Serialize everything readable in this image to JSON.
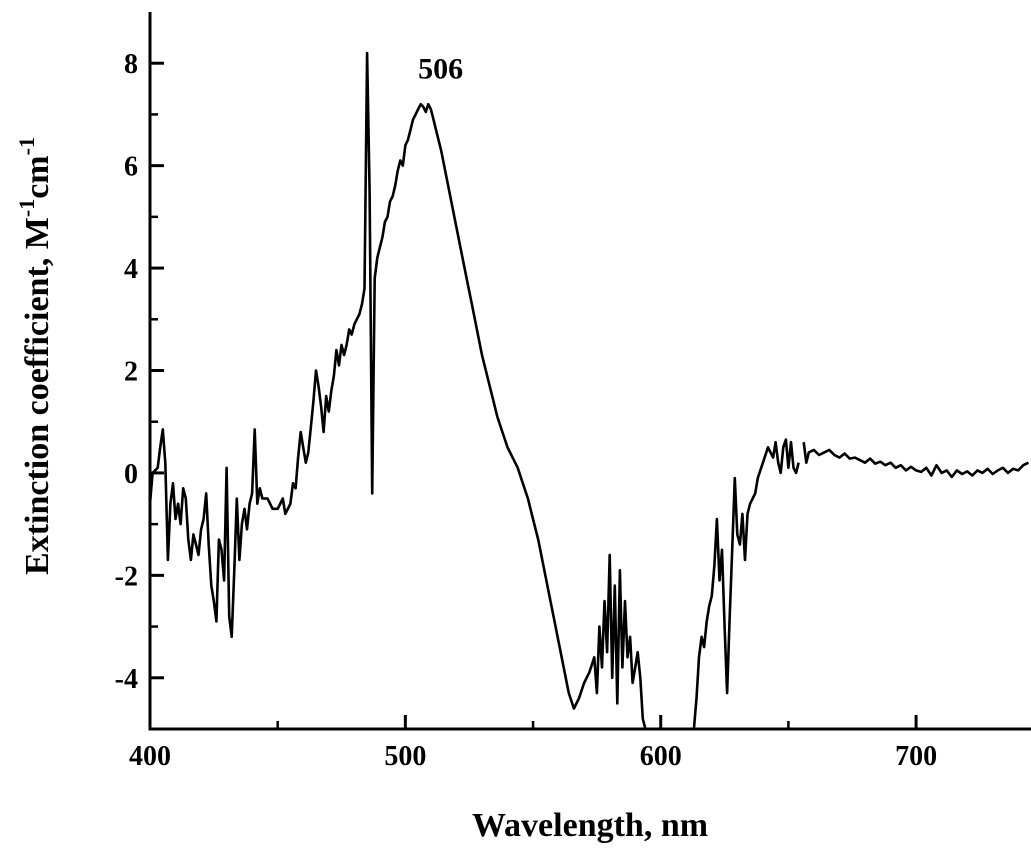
{
  "chart_data": {
    "type": "line",
    "xlabel": "Wavelength, nm",
    "ylabel": "Extinction coefficient, M",
    "ylabel_sup1": "-1",
    "ylabel_mid": "cm",
    "ylabel_sup2": "-1",
    "xlim": [
      400,
      745
    ],
    "ylim": [
      -5,
      9
    ],
    "x_ticks": [
      400,
      500,
      600,
      700
    ],
    "x_tick_labels": [
      "400",
      "500",
      "600",
      "700"
    ],
    "x_minor_ticks": [
      450,
      550,
      650
    ],
    "y_ticks": [
      -4,
      -2,
      0,
      2,
      4,
      6,
      8
    ],
    "y_tick_labels": [
      "-4",
      "-2",
      "0",
      "2",
      "4",
      "6",
      "8"
    ],
    "y_minor_ticks": [
      -3,
      -1,
      1,
      3,
      5,
      7
    ],
    "grid": false,
    "annotations": [
      {
        "text": "506",
        "x": 506,
        "y": 7.9
      }
    ],
    "series": [
      {
        "segments": [
          [
            [
              400,
              -0.6
            ],
            [
              401,
              0.0
            ],
            [
              403,
              0.1
            ],
            [
              404,
              0.5
            ],
            [
              405,
              0.85
            ],
            [
              406,
              0.2
            ],
            [
              407,
              -1.7
            ],
            [
              408,
              -0.6
            ],
            [
              409,
              -0.2
            ],
            [
              410,
              -0.9
            ],
            [
              411,
              -0.6
            ],
            [
              412,
              -1.0
            ],
            [
              413,
              -0.3
            ],
            [
              414,
              -0.5
            ],
            [
              415,
              -1.3
            ],
            [
              416,
              -1.7
            ],
            [
              417,
              -1.2
            ],
            [
              418,
              -1.4
            ],
            [
              419,
              -1.6
            ],
            [
              420,
              -1.1
            ],
            [
              421,
              -0.9
            ],
            [
              422,
              -0.4
            ],
            [
              423,
              -1.4
            ],
            [
              424,
              -2.2
            ],
            [
              425,
              -2.5
            ],
            [
              426,
              -2.9
            ],
            [
              427,
              -1.3
            ],
            [
              428,
              -1.5
            ],
            [
              429,
              -2.1
            ],
            [
              430,
              0.1
            ],
            [
              431,
              -2.8
            ],
            [
              432,
              -3.2
            ],
            [
              433,
              -1.9
            ],
            [
              434,
              -0.5
            ],
            [
              435,
              -1.7
            ],
            [
              436,
              -1.0
            ],
            [
              437,
              -0.7
            ],
            [
              438,
              -1.1
            ],
            [
              439,
              -0.6
            ],
            [
              440,
              -0.4
            ],
            [
              441,
              0.85
            ],
            [
              442,
              -0.6
            ],
            [
              443,
              -0.3
            ],
            [
              444,
              -0.5
            ],
            [
              446,
              -0.5
            ],
            [
              448,
              -0.7
            ],
            [
              450,
              -0.7
            ],
            [
              452,
              -0.5
            ],
            [
              453,
              -0.8
            ],
            [
              455,
              -0.6
            ],
            [
              456,
              -0.2
            ],
            [
              457,
              -0.3
            ],
            [
              458,
              0.3
            ],
            [
              459,
              0.8
            ],
            [
              460,
              0.5
            ],
            [
              461,
              0.2
            ],
            [
              462,
              0.4
            ],
            [
              463,
              0.9
            ],
            [
              464,
              1.4
            ],
            [
              465,
              2.0
            ],
            [
              466,
              1.7
            ],
            [
              467,
              1.3
            ],
            [
              468,
              0.8
            ],
            [
              469,
              1.5
            ],
            [
              470,
              1.2
            ],
            [
              471,
              1.6
            ],
            [
              472,
              1.9
            ],
            [
              473,
              2.4
            ],
            [
              474,
              2.1
            ],
            [
              475,
              2.5
            ],
            [
              476,
              2.3
            ],
            [
              477,
              2.5
            ],
            [
              478,
              2.8
            ],
            [
              479,
              2.7
            ],
            [
              480,
              2.9
            ],
            [
              481,
              3.0
            ],
            [
              482,
              3.1
            ],
            [
              483,
              3.3
            ],
            [
              484,
              3.6
            ],
            [
              485,
              8.2
            ],
            [
              486,
              5.5
            ],
            [
              487,
              -0.4
            ],
            [
              488,
              3.8
            ],
            [
              489,
              4.2
            ],
            [
              490,
              4.4
            ],
            [
              491,
              4.6
            ],
            [
              492,
              4.9
            ],
            [
              493,
              5.0
            ],
            [
              494,
              5.3
            ],
            [
              495,
              5.4
            ],
            [
              496,
              5.6
            ],
            [
              497,
              5.9
            ],
            [
              498,
              6.1
            ],
            [
              499,
              6.0
            ],
            [
              500,
              6.4
            ],
            [
              501,
              6.5
            ],
            [
              502,
              6.7
            ],
            [
              503,
              6.9
            ],
            [
              504,
              7.0
            ],
            [
              505,
              7.1
            ],
            [
              506,
              7.2
            ],
            [
              507,
              7.15
            ],
            [
              508,
              7.05
            ],
            [
              509,
              7.2
            ],
            [
              510,
              7.1
            ],
            [
              511,
              6.9
            ],
            [
              512,
              6.7
            ],
            [
              514,
              6.3
            ],
            [
              516,
              5.8
            ],
            [
              518,
              5.3
            ],
            [
              520,
              4.8
            ],
            [
              522,
              4.3
            ],
            [
              524,
              3.8
            ],
            [
              526,
              3.3
            ],
            [
              528,
              2.8
            ],
            [
              530,
              2.3
            ],
            [
              532,
              1.9
            ],
            [
              534,
              1.5
            ],
            [
              536,
              1.1
            ],
            [
              538,
              0.8
            ],
            [
              540,
              0.5
            ],
            [
              542,
              0.3
            ],
            [
              544,
              0.1
            ],
            [
              546,
              -0.2
            ],
            [
              548,
              -0.5
            ],
            [
              550,
              -0.9
            ],
            [
              552,
              -1.3
            ],
            [
              554,
              -1.8
            ],
            [
              556,
              -2.3
            ],
            [
              558,
              -2.8
            ],
            [
              560,
              -3.3
            ],
            [
              562,
              -3.8
            ],
            [
              564,
              -4.3
            ],
            [
              566,
              -4.6
            ],
            [
              568,
              -4.4
            ],
            [
              570,
              -4.1
            ],
            [
              572,
              -3.9
            ],
            [
              574,
              -3.6
            ],
            [
              575,
              -4.3
            ],
            [
              576,
              -3.0
            ],
            [
              577,
              -3.8
            ],
            [
              578,
              -2.5
            ],
            [
              579,
              -3.5
            ],
            [
              580,
              -1.6
            ],
            [
              581,
              -4.0
            ],
            [
              582,
              -2.2
            ],
            [
              583,
              -4.5
            ],
            [
              584,
              -1.9
            ],
            [
              585,
              -3.8
            ],
            [
              586,
              -2.5
            ],
            [
              587,
              -3.6
            ],
            [
              588,
              -3.2
            ],
            [
              589,
              -4.1
            ],
            [
              590,
              -3.8
            ],
            [
              591,
              -3.5
            ],
            [
              592,
              -4.0
            ],
            [
              593,
              -4.8
            ],
            [
              594,
              -5.0
            ]
          ],
          [
            [
              613,
              -5.0
            ],
            [
              614,
              -4.4
            ],
            [
              615,
              -3.6
            ],
            [
              616,
              -3.2
            ],
            [
              617,
              -3.4
            ],
            [
              618,
              -2.9
            ],
            [
              619,
              -2.6
            ],
            [
              620,
              -2.4
            ],
            [
              621,
              -1.8
            ],
            [
              622,
              -0.9
            ],
            [
              623,
              -2.1
            ],
            [
              624,
              -1.5
            ],
            [
              625,
              -3.0
            ],
            [
              626,
              -4.3
            ],
            [
              627,
              -2.8
            ],
            [
              628,
              -1.5
            ],
            [
              629,
              -0.1
            ],
            [
              630,
              -1.2
            ],
            [
              631,
              -1.4
            ],
            [
              632,
              -0.8
            ],
            [
              633,
              -1.7
            ],
            [
              634,
              -0.8
            ],
            [
              635,
              -0.6
            ],
            [
              637,
              -0.4
            ],
            [
              638,
              -0.1
            ],
            [
              640,
              0.2
            ],
            [
              642,
              0.5
            ],
            [
              644,
              0.3
            ],
            [
              645,
              0.6
            ],
            [
              646,
              0.2
            ],
            [
              647,
              0.0
            ],
            [
              648,
              0.5
            ],
            [
              649,
              0.65
            ],
            [
              650,
              0.1
            ],
            [
              651,
              0.6
            ],
            [
              652,
              0.1
            ],
            [
              653,
              0.0
            ],
            [
              654,
              0.2
            ]
          ],
          [
            [
              656,
              0.6
            ],
            [
              657,
              0.2
            ],
            [
              658,
              0.4
            ],
            [
              660,
              0.45
            ],
            [
              662,
              0.35
            ],
            [
              664,
              0.4
            ],
            [
              666,
              0.45
            ],
            [
              668,
              0.35
            ],
            [
              670,
              0.3
            ],
            [
              672,
              0.38
            ],
            [
              674,
              0.28
            ],
            [
              676,
              0.3
            ],
            [
              678,
              0.25
            ],
            [
              680,
              0.2
            ],
            [
              682,
              0.28
            ],
            [
              684,
              0.18
            ],
            [
              686,
              0.22
            ],
            [
              688,
              0.15
            ],
            [
              690,
              0.2
            ],
            [
              692,
              0.1
            ],
            [
              694,
              0.15
            ],
            [
              696,
              0.05
            ],
            [
              698,
              0.12
            ],
            [
              700,
              0.05
            ],
            [
              702,
              0.02
            ],
            [
              704,
              0.1
            ],
            [
              706,
              -0.05
            ],
            [
              708,
              0.15
            ],
            [
              710,
              0.0
            ],
            [
              712,
              0.05
            ],
            [
              714,
              -0.08
            ],
            [
              716,
              0.05
            ],
            [
              718,
              -0.02
            ],
            [
              720,
              0.03
            ],
            [
              722,
              -0.05
            ],
            [
              724,
              0.05
            ],
            [
              726,
              0.0
            ],
            [
              728,
              0.08
            ],
            [
              730,
              -0.02
            ],
            [
              732,
              0.05
            ],
            [
              734,
              0.1
            ],
            [
              736,
              0.0
            ],
            [
              738,
              0.08
            ],
            [
              740,
              0.05
            ],
            [
              742,
              0.15
            ],
            [
              744,
              0.2
            ]
          ]
        ]
      }
    ]
  }
}
